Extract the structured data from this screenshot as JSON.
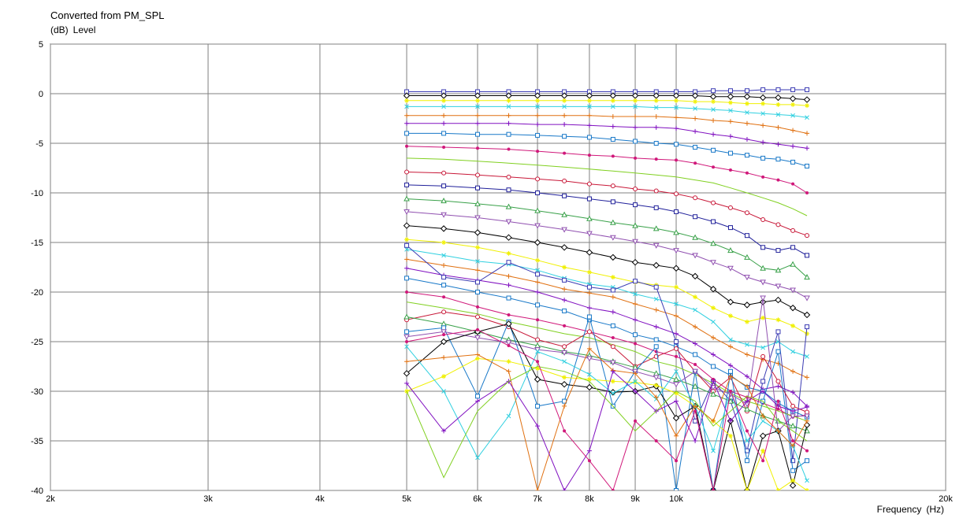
{
  "chart_data": {
    "type": "line",
    "title": "Converted from PM_SPL",
    "ylabel_unit": "(dB)",
    "ylabel": "Level",
    "xlabel": "Frequency",
    "xlabel_unit": "(Hz)",
    "xscale": "log",
    "xlim": [
      2000,
      20000
    ],
    "ylim": [
      -40,
      5
    ],
    "grid": true,
    "xticks": [
      {
        "value": 2000,
        "label": "2k"
      },
      {
        "value": 3000,
        "label": "3k"
      },
      {
        "value": 4000,
        "label": "4k"
      },
      {
        "value": 5000,
        "label": "5k"
      },
      {
        "value": 6000,
        "label": "6k"
      },
      {
        "value": 7000,
        "label": "7k"
      },
      {
        "value": 8000,
        "label": "8k"
      },
      {
        "value": 9000,
        "label": "9k"
      },
      {
        "value": 10000,
        "label": "10k"
      },
      {
        "value": 20000,
        "label": "20k"
      }
    ],
    "yticks": [
      5,
      0,
      -5,
      -10,
      -15,
      -20,
      -25,
      -30,
      -35,
      -40
    ],
    "x": [
      5000,
      5500,
      6000,
      6500,
      7000,
      7500,
      8000,
      8500,
      9000,
      9500,
      10000,
      10500,
      11000,
      11500,
      12000,
      12500,
      13000,
      13500,
      14000
    ],
    "series": [
      {
        "color": "#3b3bb3",
        "marker": "square",
        "values": [
          0.2,
          0.2,
          0.2,
          0.2,
          0.2,
          0.2,
          0.2,
          0.2,
          0.2,
          0.2,
          0.2,
          0.2,
          0.3,
          0.3,
          0.3,
          0.4,
          0.4,
          0.4,
          0.4
        ]
      },
      {
        "color": "#000000",
        "marker": "diamond",
        "values": [
          -0.2,
          -0.2,
          -0.2,
          -0.2,
          -0.2,
          -0.2,
          -0.2,
          -0.2,
          -0.2,
          -0.2,
          -0.2,
          -0.2,
          -0.3,
          -0.3,
          -0.3,
          -0.4,
          -0.4,
          -0.5,
          -0.6
        ]
      },
      {
        "color": "#f0f000",
        "marker": "star",
        "values": [
          -0.7,
          -0.7,
          -0.7,
          -0.7,
          -0.7,
          -0.7,
          -0.7,
          -0.7,
          -0.7,
          -0.7,
          -0.7,
          -0.8,
          -0.8,
          -0.9,
          -1.0,
          -1.0,
          -1.1,
          -1.1,
          -1.2
        ]
      },
      {
        "color": "#30d0e0",
        "marker": "x",
        "values": [
          -1.3,
          -1.3,
          -1.3,
          -1.3,
          -1.3,
          -1.3,
          -1.3,
          -1.3,
          -1.3,
          -1.4,
          -1.4,
          -1.5,
          -1.6,
          -1.7,
          -1.9,
          -2.0,
          -2.1,
          -2.2,
          -2.4
        ]
      },
      {
        "color": "#e07010",
        "marker": "plus",
        "values": [
          -2.2,
          -2.2,
          -2.2,
          -2.2,
          -2.2,
          -2.2,
          -2.2,
          -2.3,
          -2.3,
          -2.3,
          -2.4,
          -2.5,
          -2.7,
          -2.8,
          -3.0,
          -3.2,
          -3.4,
          -3.7,
          -4.0
        ]
      },
      {
        "color": "#8010c0",
        "marker": "plus",
        "values": [
          -3.0,
          -3.0,
          -3.0,
          -3.0,
          -3.1,
          -3.1,
          -3.2,
          -3.3,
          -3.4,
          -3.4,
          -3.5,
          -3.8,
          -4.1,
          -4.3,
          -4.6,
          -4.9,
          -5.1,
          -5.3,
          -5.5
        ]
      },
      {
        "color": "#1878c8",
        "marker": "square",
        "values": [
          -4.0,
          -4.0,
          -4.1,
          -4.1,
          -4.2,
          -4.3,
          -4.4,
          -4.6,
          -4.8,
          -5.0,
          -5.1,
          -5.4,
          -5.7,
          -6.0,
          -6.2,
          -6.5,
          -6.6,
          -6.9,
          -7.3
        ]
      },
      {
        "color": "#d0187a",
        "marker": "dot",
        "values": [
          -5.3,
          -5.4,
          -5.5,
          -5.6,
          -5.8,
          -6.0,
          -6.2,
          -6.3,
          -6.5,
          -6.6,
          -6.7,
          -7.0,
          -7.4,
          -7.7,
          -8.0,
          -8.4,
          -8.7,
          -9.1,
          -10.0
        ]
      },
      {
        "color": "#80d020",
        "marker": "none",
        "values": [
          -6.5,
          -6.6,
          -6.8,
          -7.0,
          -7.2,
          -7.4,
          -7.6,
          -7.8,
          -8.0,
          -8.2,
          -8.4,
          -8.7,
          -9.0,
          -9.5,
          -10.0,
          -10.5,
          -11.0,
          -11.6,
          -12.3
        ]
      },
      {
        "color": "#c81838",
        "marker": "circle",
        "values": [
          -7.9,
          -8.0,
          -8.2,
          -8.4,
          -8.6,
          -8.8,
          -9.1,
          -9.3,
          -9.6,
          -9.8,
          -10.1,
          -10.5,
          -11.0,
          -11.5,
          -12.0,
          -12.7,
          -13.2,
          -13.8,
          -14.3
        ]
      },
      {
        "color": "#20209a",
        "marker": "square",
        "values": [
          -9.2,
          -9.3,
          -9.5,
          -9.7,
          -10.0,
          -10.3,
          -10.6,
          -10.9,
          -11.2,
          -11.5,
          -11.9,
          -12.4,
          -12.9,
          -13.5,
          -14.3,
          -15.5,
          -15.8,
          -15.5,
          -16.3
        ]
      },
      {
        "color": "#38a048",
        "marker": "triangle",
        "values": [
          -10.6,
          -10.8,
          -11.1,
          -11.4,
          -11.8,
          -12.2,
          -12.6,
          -13.0,
          -13.3,
          -13.6,
          -14.0,
          -14.5,
          -15.1,
          -15.8,
          -16.5,
          -17.6,
          -17.8,
          -17.2,
          -18.5
        ]
      },
      {
        "color": "#9050b0",
        "marker": "triangle-down",
        "values": [
          -11.9,
          -12.2,
          -12.5,
          -12.9,
          -13.3,
          -13.7,
          -14.1,
          -14.5,
          -14.9,
          -15.3,
          -15.8,
          -16.3,
          -17.0,
          -17.6,
          -18.5,
          -19.0,
          -19.4,
          -19.8,
          -20.6
        ]
      },
      {
        "color": "#000000",
        "marker": "diamond",
        "values": [
          -13.3,
          -13.6,
          -14.0,
          -14.5,
          -15.0,
          -15.5,
          -16.0,
          -16.5,
          -17.0,
          -17.3,
          -17.6,
          -18.4,
          -19.7,
          -21.0,
          -21.3,
          -21.0,
          -20.8,
          -21.6,
          -22.3
        ]
      },
      {
        "color": "#f0f000",
        "marker": "star",
        "values": [
          -14.7,
          -15.0,
          -15.5,
          -16.1,
          -16.8,
          -17.5,
          -18.0,
          -18.5,
          -19.0,
          -19.3,
          -19.5,
          -20.5,
          -21.6,
          -22.4,
          -23.0,
          -22.6,
          -22.8,
          -23.4,
          -24.2
        ]
      },
      {
        "color": "#30d0e0",
        "marker": "x",
        "values": [
          -15.7,
          -16.3,
          -16.9,
          -17.2,
          -17.8,
          -18.6,
          -19.2,
          -19.5,
          -20.2,
          -20.7,
          -21.2,
          -21.8,
          -23.0,
          -24.8,
          -25.3,
          -25.6,
          -25.0,
          -26.0,
          -26.5
        ]
      },
      {
        "color": "#e07010",
        "marker": "plus",
        "values": [
          -16.7,
          -17.3,
          -17.8,
          -18.4,
          -19.0,
          -19.7,
          -20.1,
          -20.5,
          -21.2,
          -21.8,
          -22.4,
          -23.5,
          -24.6,
          -25.5,
          -26.3,
          -26.8,
          -27.2,
          -28.0,
          -28.6
        ]
      },
      {
        "color": "#8010c0",
        "marker": "plus",
        "values": [
          -17.6,
          -18.3,
          -18.8,
          -19.3,
          -20.0,
          -20.8,
          -21.6,
          -22.0,
          -22.8,
          -23.5,
          -24.2,
          -25.2,
          -26.3,
          -27.4,
          -28.5,
          -29.8,
          -29.5,
          -30.1,
          -31.5
        ]
      },
      {
        "color": "#1878c8",
        "marker": "square",
        "values": [
          -18.6,
          -19.3,
          -20.0,
          -20.6,
          -21.3,
          -21.9,
          -22.8,
          -23.4,
          -24.3,
          -24.8,
          -25.5,
          -26.3,
          -27.5,
          -28.4,
          -29.6,
          -30.0,
          -31.2,
          -32.0,
          -32.6
        ]
      },
      {
        "color": "#3b3bb3",
        "marker": "square",
        "values": [
          -15.3,
          -18.5,
          -19.0,
          -17.0,
          -18.2,
          -18.8,
          -19.5,
          -19.8,
          -18.9,
          -19.5,
          -25.0,
          -33.0,
          -29.0,
          -31.0,
          -36.0,
          -29.0,
          -24.0,
          -37.0,
          -23.5
        ]
      },
      {
        "color": "#d0187a",
        "marker": "dot",
        "values": [
          -20.0,
          -20.5,
          -21.5,
          -22.3,
          -22.8,
          -23.4,
          -24.0,
          -24.6,
          -25.2,
          -26.0,
          -26.5,
          -27.3,
          -28.8,
          -30.0,
          -30.6,
          -31.2,
          -31.8,
          -32.6,
          -32.4
        ]
      },
      {
        "color": "#80d020",
        "marker": "none",
        "values": [
          -21.0,
          -21.6,
          -22.2,
          -23.0,
          -23.6,
          -24.2,
          -24.6,
          -25.3,
          -26.0,
          -27.0,
          -27.5,
          -28.3,
          -29.2,
          -30.2,
          -31.0,
          -31.5,
          -32.0,
          -32.5,
          -33.0
        ]
      },
      {
        "color": "#c81838",
        "marker": "circle",
        "values": [
          -22.8,
          -22.0,
          -22.5,
          -23.5,
          -24.8,
          -25.5,
          -24.0,
          -25.5,
          -27.5,
          -26.5,
          -25.7,
          -28.0,
          -30.0,
          -28.6,
          -32.0,
          -26.5,
          -29.0,
          -31.5,
          -32.1
        ]
      },
      {
        "color": "#38a048",
        "marker": "triangle",
        "values": [
          -22.5,
          -23.2,
          -24.0,
          -24.8,
          -25.4,
          -26.0,
          -26.4,
          -27.0,
          -27.6,
          -28.2,
          -28.8,
          -29.5,
          -30.3,
          -31.0,
          -31.8,
          -32.5,
          -33.0,
          -33.5,
          -34.0
        ]
      },
      {
        "color": "#1878c8",
        "marker": "square",
        "values": [
          -24.0,
          -23.6,
          -30.5,
          -23.0,
          -31.5,
          -31.0,
          -22.5,
          -31.5,
          -28.0,
          -25.5,
          -40.0,
          -28.0,
          -40.0,
          -28.0,
          -37.0,
          -31.0,
          -26.0,
          -38.0,
          -37.0
        ]
      },
      {
        "color": "#9050b0",
        "marker": "triangle-down",
        "values": [
          -24.5,
          -24.0,
          -24.6,
          -25.1,
          -25.8,
          -26.1,
          -26.7,
          -27.1,
          -28.0,
          -28.6,
          -29.3,
          -28.0,
          -29.6,
          -30.3,
          -31.3,
          -20.6,
          -34.0,
          -32.5,
          -32.5
        ]
      },
      {
        "color": "#000000",
        "marker": "diamond",
        "values": [
          -28.2,
          -25.0,
          -24.0,
          -23.2,
          -28.8,
          -29.3,
          -29.6,
          -30.1,
          -30.0,
          -29.5,
          -32.7,
          -31.5,
          -40.0,
          -33.0,
          -40.0,
          -34.5,
          -34.0,
          -39.5,
          -33.4
        ]
      },
      {
        "color": "#f0f000",
        "marker": "star",
        "values": [
          -30.0,
          -28.5,
          -26.7,
          -27.0,
          -27.7,
          -28.6,
          -28.8,
          -29.0,
          -29.1,
          -29.4,
          -30.2,
          -31.5,
          -33.0,
          -34.5,
          -40.0,
          -36.0,
          -40.0,
          -39.0,
          -40.0
        ]
      },
      {
        "color": "#30d0e0",
        "marker": "x",
        "values": [
          -25.5,
          -30.0,
          -36.7,
          -32.5,
          -26.0,
          -27.0,
          -28.3,
          -30.2,
          -29.0,
          -30.8,
          -28.0,
          -31.5,
          -36.0,
          -30.0,
          -35.0,
          -33.0,
          -34.0,
          -35.5,
          -39.0
        ]
      },
      {
        "color": "#e07010",
        "marker": "plus",
        "values": [
          -27.0,
          -26.6,
          -26.3,
          -28.0,
          -40.0,
          -31.5,
          -25.7,
          -27.9,
          -28.2,
          -30.6,
          -34.5,
          -31.5,
          -33.0,
          -28.5,
          -29.5,
          -32.5,
          -34.0,
          -35.5,
          -33.0
        ]
      },
      {
        "color": "#8010c0",
        "marker": "plus",
        "values": [
          -29.2,
          -34.0,
          -31.0,
          -29.0,
          -33.5,
          -40.0,
          -36.0,
          -28.0,
          -30.0,
          -32.0,
          -31.0,
          -35.0,
          -29.0,
          -33.0,
          -31.0,
          -30.0,
          -31.5,
          -32.0,
          -31.6
        ]
      },
      {
        "color": "#80d020",
        "marker": "none",
        "values": [
          -30.0,
          -38.7,
          -32.0,
          -29.0,
          -27.5,
          -28.0,
          -29.0,
          -31.5,
          -34.0,
          -32.0,
          -30.0,
          -31.0,
          -33.5,
          -32.0,
          -30.5,
          -31.0,
          -33.0,
          -34.0,
          -35.0
        ]
      },
      {
        "color": "#d0187a",
        "marker": "dot",
        "values": [
          -25.0,
          -24.3,
          -23.8,
          -25.4,
          -27.0,
          -34.0,
          -37.0,
          -40.0,
          -33.0,
          -35.0,
          -37.0,
          -32.0,
          -40.0,
          -30.0,
          -34.0,
          -37.0,
          -31.0,
          -35.0,
          -36.0
        ]
      }
    ]
  }
}
